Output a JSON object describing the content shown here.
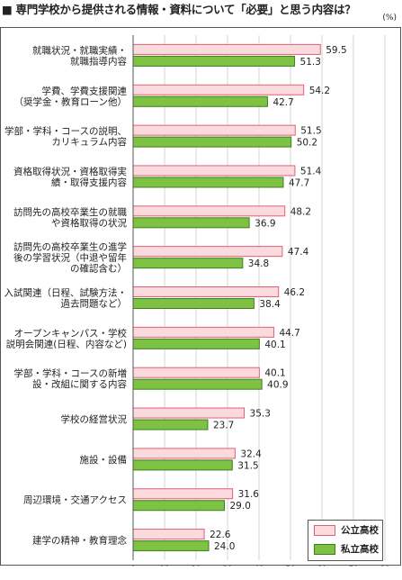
{
  "title": "■ 専門学校から提供される情報・資料について「必要」と思う内容は？",
  "unit": "(%)",
  "chart_data": {
    "type": "bar",
    "orientation": "horizontal",
    "title": "■ 専門学校から提供される情報・資料について「必要」と思う内容は？",
    "unit": "(%)",
    "categories": [
      [
        "就職状況・就職実績・",
        "就職指導内容"
      ],
      [
        "学費、学費支援関連",
        "（奨学金・教育ローン他）"
      ],
      [
        "学部・学科・コースの説明、",
        "カリキュラム内容"
      ],
      [
        "資格取得状況・資格取得実",
        "績・取得支援内容"
      ],
      [
        "訪問先の高校卒業生の就職",
        "や資格取得の状況"
      ],
      [
        "訪問先の高校卒業生の進学",
        "後の学習状況（中退や留年",
        "の確認含む）"
      ],
      [
        "入試関連（日程、試験方法・",
        "過去問題など）"
      ],
      [
        "オープンキャンパス・学校",
        "説明会関連(日程、内容など)"
      ],
      [
        "学部・学科・コースの新増",
        "設・改組に関する内容"
      ],
      [
        "学校の経営状況"
      ],
      [
        "施設・設備"
      ],
      [
        "周辺環境・交通アクセス"
      ],
      [
        "建学の精神・教育理念"
      ]
    ],
    "series": [
      {
        "name": "公立高校",
        "values": [
          59.5,
          54.2,
          51.5,
          51.4,
          48.2,
          47.4,
          46.2,
          44.7,
          40.1,
          35.3,
          32.4,
          31.6,
          22.6
        ],
        "labels": [
          "59.5",
          "54.2",
          "51.5",
          "51.4",
          "48.2",
          "47.4",
          "46.2",
          "44.7",
          "40.1",
          "35.3",
          "32.4",
          "31.6",
          "22.6"
        ]
      },
      {
        "name": "私立高校",
        "values": [
          51.3,
          42.7,
          50.2,
          47.7,
          36.9,
          34.8,
          38.4,
          40.1,
          40.9,
          23.7,
          31.5,
          29.0,
          24.0
        ],
        "labels": [
          "51.3",
          "42.7",
          "50.2",
          "47.7",
          "36.9",
          "34.8",
          "38.4",
          "40.1",
          "40.9",
          "23.7",
          "31.5",
          "29.0",
          "24.0"
        ]
      }
    ],
    "xlim": [
      0,
      80
    ],
    "ticks": [
      "0",
      "10",
      "20",
      "30",
      "40",
      "50",
      "60",
      "70",
      "80"
    ],
    "grid": true,
    "legend_position": "bottom-right",
    "colors": {
      "公立高校": {
        "fill": "#fadadd",
        "stroke": "#e0607a"
      },
      "私立高校": {
        "fill": "#7dc242",
        "stroke": "#3f7f1f"
      }
    }
  }
}
